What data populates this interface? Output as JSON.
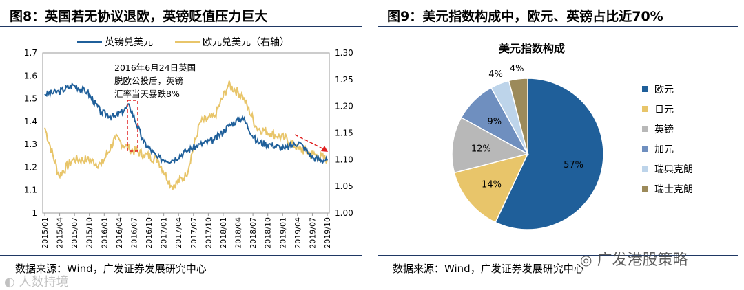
{
  "left": {
    "title": "图8：英国若无协议退欧，英镑贬值压力巨大",
    "source": "数据来源：Wind，广发证券发展研究中心"
  },
  "right": {
    "title": "图9：美元指数构成中，欧元、英镑占比近70%",
    "source": "数据来源：Wind，广发证券发展研究中心"
  },
  "watermarks": {
    "wechat": "广发港股策略",
    "bottom_left": "人数持境"
  },
  "colors": {
    "gbp": "#1f5f9a",
    "eur": "#e8c56a",
    "frame": "#1f3864",
    "annotation": "#e02020"
  },
  "chart_data": [
    {
      "type": "line",
      "title": "",
      "series": [
        {
          "name": "英镑兑美元",
          "axis": "left",
          "color": "#1f5f9a",
          "x": [
            "2015-01",
            "2015-04",
            "2015-07",
            "2015-10",
            "2016-01",
            "2016-04",
            "2016-06",
            "2016-07",
            "2016-10",
            "2017-01",
            "2017-04",
            "2017-07",
            "2017-10",
            "2018-01",
            "2018-04",
            "2018-07",
            "2018-10",
            "2019-01",
            "2019-04",
            "2019-07",
            "2019-10"
          ],
          "values": [
            1.52,
            1.53,
            1.56,
            1.53,
            1.44,
            1.42,
            1.47,
            1.31,
            1.24,
            1.23,
            1.27,
            1.3,
            1.32,
            1.38,
            1.42,
            1.31,
            1.3,
            1.28,
            1.31,
            1.24,
            1.23
          ]
        },
        {
          "name": "欧元兑美元（右轴）",
          "axis": "right",
          "color": "#e8c56a",
          "x": [
            "2015-01",
            "2015-04",
            "2015-07",
            "2015-10",
            "2016-01",
            "2016-04",
            "2016-06",
            "2016-07",
            "2016-10",
            "2017-01",
            "2017-04",
            "2017-07",
            "2017-10",
            "2018-01",
            "2018-04",
            "2018-07",
            "2018-10",
            "2019-01",
            "2019-04",
            "2019-07",
            "2019-10"
          ],
          "values": [
            1.16,
            1.07,
            1.1,
            1.1,
            1.09,
            1.14,
            1.12,
            1.11,
            1.1,
            1.05,
            1.07,
            1.17,
            1.18,
            1.24,
            1.22,
            1.16,
            1.15,
            1.14,
            1.12,
            1.11,
            1.1
          ]
        }
      ],
      "x_tick_labels": [
        "2015/01",
        "2015/04",
        "2015/07",
        "2015/10",
        "2016/01",
        "2016/04",
        "2016/07",
        "2016/10",
        "2017/01",
        "2017/04",
        "2017/07",
        "2017/10",
        "2018/01",
        "2018/04",
        "2018/07",
        "2018/10",
        "2019/01",
        "2019/04",
        "2019/07",
        "2019/10"
      ],
      "ylim_left": [
        1,
        1.7
      ],
      "yticks_left": [
        "1",
        "1.1",
        "1.2",
        "1.3",
        "1.4",
        "1.5",
        "1.6",
        "1.7"
      ],
      "ylim_right": [
        1.0,
        1.3
      ],
      "yticks_right": [
        "1.00",
        "1.05",
        "1.10",
        "1.15",
        "1.20",
        "1.25",
        "1.30"
      ],
      "annotation": {
        "lines": [
          "2016年6月24日英国",
          "脱欧公投后，英镑",
          "汇率当天暴跌8%"
        ]
      },
      "legend_position": "top"
    },
    {
      "type": "pie",
      "title": "美元指数构成",
      "labels": [
        "欧元",
        "日元",
        "英镑",
        "加元",
        "瑞典克朗",
        "瑞士克朗"
      ],
      "values": [
        57,
        14,
        12,
        9,
        4,
        4
      ],
      "value_labels": [
        "57%",
        "14%",
        "12%",
        "9%",
        "4%",
        "4%"
      ],
      "colors": [
        "#1f5f9a",
        "#e8c56a",
        "#b8b8b8",
        "#6f8fbf",
        "#bdd4ea",
        "#9c8a5a"
      ],
      "legend_position": "right"
    }
  ]
}
